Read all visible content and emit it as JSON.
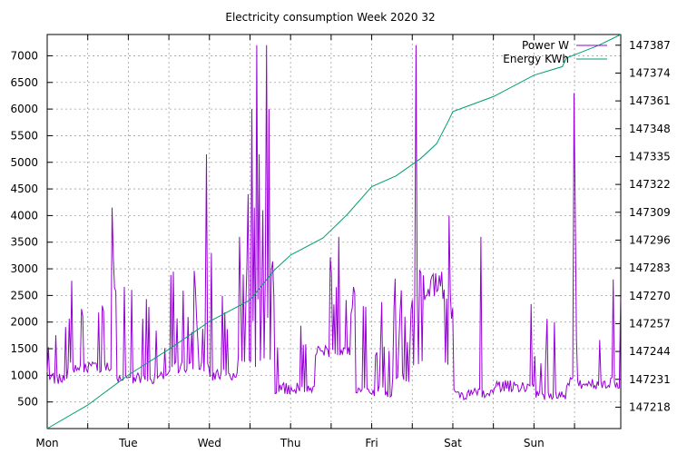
{
  "chart_data": {
    "type": "line",
    "title": "Electricity consumption Week 2020 32",
    "xlabel": "",
    "ylabel": "",
    "x_ticks": [
      "Mon",
      "Tue",
      "Wed",
      "Thu",
      "Fri",
      "Sat",
      "Sun"
    ],
    "x_range_days": [
      0,
      7.07
    ],
    "y_left": {
      "range": [
        0,
        7400
      ],
      "ticks": [
        500,
        1000,
        1500,
        2000,
        2500,
        3000,
        3500,
        4000,
        4500,
        5000,
        5500,
        6000,
        6500,
        7000
      ]
    },
    "y_right": {
      "range": [
        147208,
        147392
      ],
      "ticks": [
        147218,
        147231,
        147244,
        147257,
        147270,
        147283,
        147296,
        147309,
        147322,
        147335,
        147348,
        147361,
        147374,
        147387
      ]
    },
    "grid": true,
    "legend_position": "top-right",
    "series": [
      {
        "name": "Power W",
        "axis": "left",
        "color": "#9400d3",
        "segments": [
          {
            "day_start": 0.0,
            "day_end": 0.25,
            "base": 950,
            "spike_prob": 0.1,
            "spike_min": 1500,
            "spike_max": 2700
          },
          {
            "day_start": 0.25,
            "day_end": 0.85,
            "base": 1150,
            "spike_prob": 0.3,
            "spike_min": 2000,
            "spike_max": 2800
          },
          {
            "day_start": 0.85,
            "day_end": 1.5,
            "base": 950,
            "spike_prob": 0.12,
            "spike_min": 1500,
            "spike_max": 2700
          },
          {
            "day_start": 1.5,
            "day_end": 2.0,
            "base": 1150,
            "spike_prob": 0.55,
            "spike_min": 1600,
            "spike_max": 3000
          },
          {
            "day_start": 2.0,
            "day_end": 2.35,
            "base": 1000,
            "spike_prob": 0.15,
            "spike_min": 1500,
            "spike_max": 2700
          },
          {
            "day_start": 2.35,
            "day_end": 2.8,
            "base": 1250,
            "spike_prob": 0.8,
            "spike_min": 2000,
            "spike_max": 3200
          },
          {
            "day_start": 2.8,
            "day_end": 3.3,
            "base": 750,
            "spike_prob": 0.12,
            "spike_min": 1300,
            "spike_max": 2000
          },
          {
            "day_start": 3.3,
            "day_end": 3.8,
            "base": 1450,
            "spike_prob": 0.35,
            "spike_min": 2000,
            "spike_max": 3500
          },
          {
            "day_start": 3.8,
            "day_end": 4.25,
            "base": 700,
            "spike_prob": 0.1,
            "spike_min": 1200,
            "spike_max": 2700
          },
          {
            "day_start": 4.25,
            "day_end": 4.5,
            "base": 950,
            "spike_prob": 0.5,
            "spike_min": 1500,
            "spike_max": 3000
          },
          {
            "day_start": 4.5,
            "day_end": 4.9,
            "base": 1200,
            "spike_prob": 0.92,
            "spike_min": 2400,
            "spike_max": 3000
          },
          {
            "day_start": 4.9,
            "day_end": 5.0,
            "base": 1300,
            "spike_prob": 0.4,
            "spike_min": 1500,
            "spike_max": 3000
          },
          {
            "day_start": 5.0,
            "day_end": 5.5,
            "base": 650,
            "spike_prob": 0.06,
            "spike_min": 1500,
            "spike_max": 2200
          },
          {
            "day_start": 5.5,
            "day_end": 6.0,
            "base": 800,
            "spike_prob": 0.05,
            "spike_min": 1000,
            "spike_max": 2500
          },
          {
            "day_start": 6.0,
            "day_end": 6.4,
            "base": 600,
            "spike_prob": 0.06,
            "spike_min": 1000,
            "spike_max": 2100
          },
          {
            "day_start": 6.4,
            "day_end": 7.07,
            "base": 850,
            "spike_prob": 0.12,
            "spike_min": 1500,
            "spike_max": 2600
          }
        ],
        "peaks": [
          {
            "day": 0.8,
            "value": 4150
          },
          {
            "day": 0.82,
            "value": 3200
          },
          {
            "day": 1.97,
            "value": 5150
          },
          {
            "day": 2.02,
            "value": 3300
          },
          {
            "day": 2.37,
            "value": 3600
          },
          {
            "day": 2.47,
            "value": 4400
          },
          {
            "day": 2.52,
            "value": 6000
          },
          {
            "day": 2.55,
            "value": 4150
          },
          {
            "day": 2.58,
            "value": 7200
          },
          {
            "day": 2.62,
            "value": 5150
          },
          {
            "day": 2.66,
            "value": 4100
          },
          {
            "day": 2.71,
            "value": 7200
          },
          {
            "day": 2.73,
            "value": 6000
          },
          {
            "day": 3.6,
            "value": 3600
          },
          {
            "day": 4.54,
            "value": 7200
          },
          {
            "day": 4.95,
            "value": 4000
          },
          {
            "day": 5.35,
            "value": 3600
          },
          {
            "day": 6.49,
            "value": 6300
          },
          {
            "day": 6.51,
            "value": 4150
          },
          {
            "day": 6.98,
            "value": 2800
          }
        ]
      },
      {
        "name": "Energy KWh",
        "axis": "right",
        "color": "#009e73",
        "points": [
          [
            0.0,
            147208
          ],
          [
            0.5,
            147219
          ],
          [
            1.0,
            147233
          ],
          [
            1.5,
            147245
          ],
          [
            2.0,
            147258
          ],
          [
            2.5,
            147268
          ],
          [
            2.8,
            147282
          ],
          [
            3.0,
            147289
          ],
          [
            3.4,
            147297
          ],
          [
            3.7,
            147308
          ],
          [
            4.0,
            147321
          ],
          [
            4.3,
            147326
          ],
          [
            4.6,
            147334
          ],
          [
            4.8,
            147341
          ],
          [
            4.95,
            147352
          ],
          [
            5.0,
            147356
          ],
          [
            5.5,
            147363
          ],
          [
            6.0,
            147373
          ],
          [
            6.35,
            147377
          ],
          [
            6.4,
            147381
          ],
          [
            6.8,
            147387
          ],
          [
            7.07,
            147392
          ]
        ]
      }
    ]
  }
}
